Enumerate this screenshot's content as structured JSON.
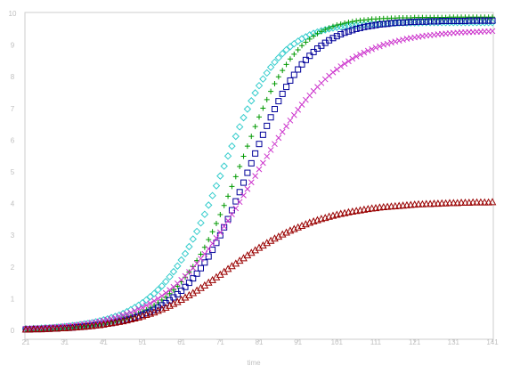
{
  "chart_data": {
    "type": "scatter",
    "xlabel": "time",
    "ylabel": "",
    "xlim": [
      21,
      141
    ],
    "ylim": [
      0,
      10
    ],
    "grid": false,
    "legend": "none",
    "x_ticks": [
      "21",
      "31",
      "41",
      "51",
      "61",
      "71",
      "81",
      "91",
      "101",
      "111",
      "121",
      "131",
      "141"
    ],
    "y_ticks": [
      "0",
      "1",
      "2",
      "3",
      "4",
      "5",
      "6",
      "7",
      "8",
      "9",
      "10"
    ],
    "x_start": 21,
    "x_step": 1,
    "series": [
      {
        "marker": "diamond",
        "color": "#33cccc",
        "values": [
          0.05,
          0.05,
          0.06,
          0.06,
          0.07,
          0.08,
          0.08,
          0.09,
          0.1,
          0.11,
          0.12,
          0.13,
          0.15,
          0.16,
          0.18,
          0.2,
          0.22,
          0.24,
          0.27,
          0.3,
          0.33,
          0.36,
          0.4,
          0.44,
          0.48,
          0.53,
          0.59,
          0.65,
          0.72,
          0.79,
          0.87,
          0.96,
          1.06,
          1.16,
          1.28,
          1.4,
          1.54,
          1.69,
          1.85,
          2.03,
          2.22,
          2.42,
          2.64,
          2.88,
          3.12,
          3.39,
          3.66,
          3.95,
          4.25,
          4.56,
          4.87,
          5.18,
          5.5,
          5.81,
          6.12,
          6.42,
          6.71,
          6.98,
          7.24,
          7.49,
          7.72,
          7.93,
          8.12,
          8.3,
          8.46,
          8.6,
          8.73,
          8.85,
          8.95,
          9.04,
          9.12,
          9.2,
          9.26,
          9.32,
          9.37,
          9.41,
          9.45,
          9.48,
          9.51,
          9.54,
          9.56,
          9.58,
          9.6,
          9.61,
          9.62,
          9.63,
          9.64,
          9.65,
          9.66,
          9.67,
          9.67,
          9.68,
          9.68,
          9.69,
          9.69,
          9.69,
          9.7,
          9.7,
          9.7,
          9.7,
          9.7,
          9.7,
          9.71,
          9.71,
          9.71,
          9.71,
          9.71,
          9.71,
          9.71,
          9.71,
          9.71,
          9.71,
          9.71,
          9.71,
          9.71,
          9.71,
          9.71,
          9.71,
          9.71,
          9.71,
          9.71
        ]
      },
      {
        "marker": "plus",
        "color": "#009900",
        "values": [
          0.04,
          0.04,
          0.04,
          0.05,
          0.05,
          0.06,
          0.06,
          0.07,
          0.07,
          0.08,
          0.09,
          0.1,
          0.11,
          0.12,
          0.13,
          0.14,
          0.15,
          0.17,
          0.19,
          0.2,
          0.23,
          0.25,
          0.27,
          0.3,
          0.33,
          0.37,
          0.4,
          0.44,
          0.49,
          0.54,
          0.59,
          0.65,
          0.72,
          0.79,
          0.87,
          0.96,
          1.05,
          1.16,
          1.27,
          1.39,
          1.53,
          1.68,
          1.84,
          2.01,
          2.2,
          2.4,
          2.62,
          2.86,
          3.11,
          3.37,
          3.65,
          3.94,
          4.23,
          4.54,
          4.85,
          5.17,
          5.49,
          5.81,
          6.12,
          6.43,
          6.73,
          7.01,
          7.28,
          7.54,
          7.78,
          8.0,
          8.2,
          8.39,
          8.56,
          8.71,
          8.85,
          8.98,
          9.09,
          9.19,
          9.28,
          9.36,
          9.43,
          9.49,
          9.54,
          9.59,
          9.63,
          9.66,
          9.69,
          9.72,
          9.74,
          9.76,
          9.78,
          9.79,
          9.8,
          9.82,
          9.82,
          9.83,
          9.84,
          9.84,
          9.85,
          9.85,
          9.86,
          9.86,
          9.86,
          9.86,
          9.87,
          9.87,
          9.87,
          9.87,
          9.87,
          9.87,
          9.87,
          9.87,
          9.87,
          9.88,
          9.88,
          9.88,
          9.88,
          9.88,
          9.88,
          9.88,
          9.88,
          9.88,
          9.88,
          9.88,
          9.88
        ]
      },
      {
        "marker": "square",
        "color": "#000099",
        "values": [
          0.03,
          0.03,
          0.04,
          0.04,
          0.04,
          0.05,
          0.05,
          0.06,
          0.06,
          0.07,
          0.07,
          0.08,
          0.09,
          0.1,
          0.11,
          0.12,
          0.13,
          0.14,
          0.16,
          0.17,
          0.19,
          0.21,
          0.23,
          0.25,
          0.28,
          0.31,
          0.34,
          0.37,
          0.41,
          0.45,
          0.49,
          0.54,
          0.59,
          0.65,
          0.72,
          0.79,
          0.86,
          0.95,
          1.04,
          1.14,
          1.25,
          1.37,
          1.5,
          1.64,
          1.79,
          1.96,
          2.14,
          2.33,
          2.54,
          2.76,
          3.0,
          3.25,
          3.51,
          3.79,
          4.07,
          4.36,
          4.66,
          4.97,
          5.27,
          5.58,
          5.88,
          6.17,
          6.45,
          6.72,
          6.98,
          7.23,
          7.46,
          7.68,
          7.88,
          8.06,
          8.23,
          8.39,
          8.53,
          8.66,
          8.78,
          8.89,
          8.98,
          9.07,
          9.15,
          9.22,
          9.28,
          9.34,
          9.39,
          9.43,
          9.47,
          9.51,
          9.54,
          9.57,
          9.59,
          9.61,
          9.63,
          9.65,
          9.66,
          9.67,
          9.69,
          9.7,
          9.71,
          9.71,
          9.72,
          9.73,
          9.73,
          9.74,
          9.74,
          9.74,
          9.75,
          9.75,
          9.75,
          9.76,
          9.76,
          9.76,
          9.76,
          9.76,
          9.76,
          9.76,
          9.77,
          9.77,
          9.77,
          9.77,
          9.77,
          9.77,
          9.77
        ]
      },
      {
        "marker": "x",
        "color": "#cc33cc",
        "values": [
          0.05,
          0.06,
          0.06,
          0.07,
          0.07,
          0.08,
          0.09,
          0.1,
          0.11,
          0.12,
          0.13,
          0.14,
          0.15,
          0.17,
          0.18,
          0.2,
          0.22,
          0.24,
          0.26,
          0.28,
          0.31,
          0.34,
          0.37,
          0.4,
          0.44,
          0.48,
          0.52,
          0.56,
          0.61,
          0.67,
          0.72,
          0.79,
          0.85,
          0.93,
          1.0,
          1.09,
          1.18,
          1.27,
          1.37,
          1.48,
          1.59,
          1.71,
          1.84,
          1.97,
          2.11,
          2.26,
          2.41,
          2.57,
          2.74,
          2.91,
          3.09,
          3.28,
          3.46,
          3.66,
          3.85,
          4.05,
          4.26,
          4.46,
          4.67,
          4.87,
          5.08,
          5.28,
          5.49,
          5.69,
          5.88,
          6.07,
          6.26,
          6.44,
          6.62,
          6.79,
          6.96,
          7.12,
          7.27,
          7.41,
          7.55,
          7.68,
          7.8,
          7.92,
          8.03,
          8.14,
          8.23,
          8.33,
          8.41,
          8.49,
          8.57,
          8.64,
          8.7,
          8.76,
          8.82,
          8.87,
          8.92,
          8.96,
          9.01,
          9.04,
          9.08,
          9.11,
          9.14,
          9.17,
          9.2,
          9.22,
          9.24,
          9.26,
          9.28,
          9.3,
          9.31,
          9.32,
          9.34,
          9.35,
          9.36,
          9.37,
          9.38,
          9.39,
          9.4,
          9.4,
          9.41,
          9.41,
          9.42,
          9.42,
          9.43,
          9.43,
          9.44
        ]
      },
      {
        "marker": "triangle",
        "color": "#990000",
        "values": [
          0.03,
          0.03,
          0.04,
          0.04,
          0.04,
          0.05,
          0.05,
          0.06,
          0.06,
          0.07,
          0.07,
          0.08,
          0.09,
          0.1,
          0.11,
          0.12,
          0.13,
          0.14,
          0.16,
          0.17,
          0.19,
          0.21,
          0.23,
          0.25,
          0.27,
          0.29,
          0.32,
          0.35,
          0.38,
          0.41,
          0.45,
          0.49,
          0.53,
          0.57,
          0.62,
          0.67,
          0.72,
          0.78,
          0.84,
          0.9,
          0.97,
          1.04,
          1.11,
          1.18,
          1.26,
          1.34,
          1.42,
          1.51,
          1.59,
          1.68,
          1.76,
          1.85,
          1.94,
          2.03,
          2.11,
          2.2,
          2.28,
          2.37,
          2.45,
          2.53,
          2.61,
          2.68,
          2.76,
          2.83,
          2.9,
          2.96,
          3.03,
          3.09,
          3.15,
          3.2,
          3.25,
          3.3,
          3.35,
          3.4,
          3.44,
          3.48,
          3.52,
          3.55,
          3.59,
          3.62,
          3.65,
          3.68,
          3.7,
          3.73,
          3.75,
          3.77,
          3.79,
          3.81,
          3.83,
          3.85,
          3.86,
          3.88,
          3.89,
          3.9,
          3.91,
          3.92,
          3.93,
          3.94,
          3.95,
          3.96,
          3.97,
          3.98,
          3.98,
          3.99,
          3.99,
          4.0,
          4.0,
          4.01,
          4.01,
          4.02,
          4.02,
          4.02,
          4.03,
          4.03,
          4.03,
          4.04,
          4.04,
          4.04,
          4.04,
          4.04,
          4.05
        ]
      }
    ]
  }
}
